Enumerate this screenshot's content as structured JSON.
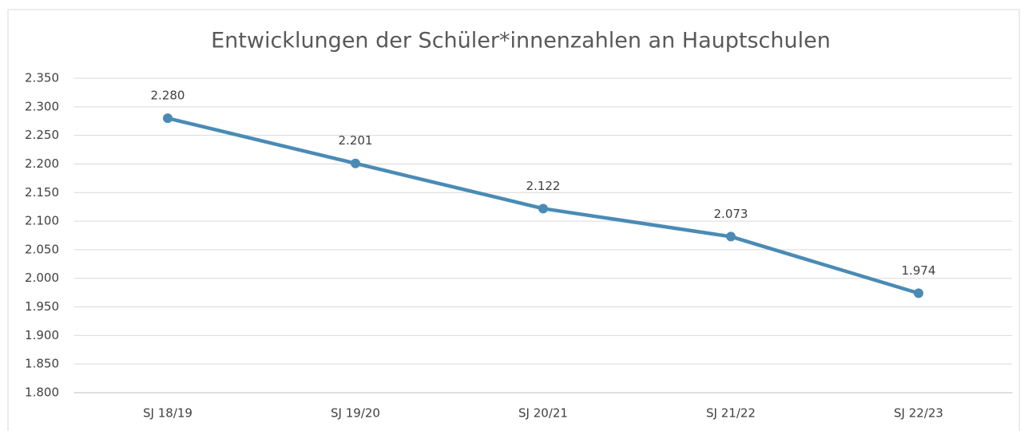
{
  "chart_data": {
    "type": "line",
    "title": "Entwicklungen der Schüler*innenzahlen an Hauptschulen",
    "categories": [
      "SJ 18/19",
      "SJ 19/20",
      "SJ 20/21",
      "SJ 21/22",
      "SJ 22/23"
    ],
    "series": [
      {
        "name": "Hauptschulen",
        "color": "#4a8bb5",
        "values": [
          2280,
          2201,
          2122,
          2073,
          1974
        ],
        "value_labels": [
          "2.280",
          "2.201",
          "2.122",
          "2.073",
          "1.974"
        ]
      }
    ],
    "ylim": [
      1800,
      2350
    ],
    "yticks": [
      {
        "value": 1800,
        "label": "1.800"
      },
      {
        "value": 1850,
        "label": "1.850"
      },
      {
        "value": 1900,
        "label": "1.900"
      },
      {
        "value": 1950,
        "label": "1.950"
      },
      {
        "value": 2000,
        "label": "2.000"
      },
      {
        "value": 2050,
        "label": "2.050"
      },
      {
        "value": 2100,
        "label": "2.100"
      },
      {
        "value": 2150,
        "label": "2.150"
      },
      {
        "value": 2200,
        "label": "2.200"
      },
      {
        "value": 2250,
        "label": "2.250"
      },
      {
        "value": 2300,
        "label": "2.300"
      },
      {
        "value": 2350,
        "label": "2.350"
      }
    ],
    "grid": true
  }
}
